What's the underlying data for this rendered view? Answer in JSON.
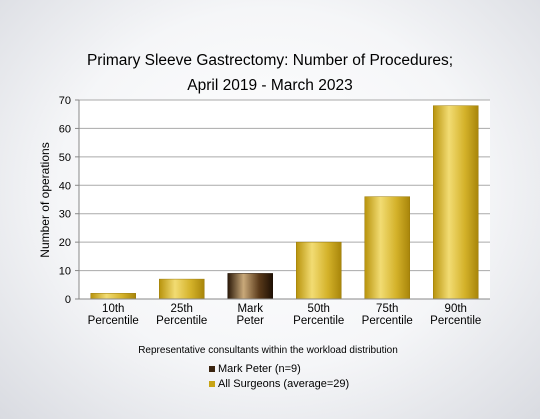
{
  "chart_data": {
    "type": "bar",
    "title": "Primary Sleeve Gastrectomy: Number of Procedures;",
    "subtitle": "April 2019 - March 2023",
    "ylabel": "Number of operations",
    "xlabel": "Representative consultants within the workload distribution",
    "ylim": [
      0,
      70
    ],
    "yticks": [
      0,
      10,
      20,
      30,
      40,
      50,
      60,
      70
    ],
    "grid": true,
    "categories": [
      [
        "10th",
        "Percentile"
      ],
      [
        "25th",
        "Percentile"
      ],
      [
        "Mark",
        "Peter"
      ],
      [
        "50th",
        "Percentile"
      ],
      [
        "75th",
        "Percentile"
      ],
      [
        "90th",
        "Percentile"
      ]
    ],
    "values": [
      2,
      7,
      9,
      20,
      36,
      68
    ],
    "highlight_index": 2,
    "colors": {
      "surgeon": "#c8a415",
      "highlight": "#3a2410",
      "surgeon_light": "#f2dc73",
      "highlight_light": "#c9a97a"
    },
    "legend": [
      {
        "label": "Mark Peter (n=9)",
        "color": "#3a2410"
      },
      {
        "label": "All Surgeons (average=29)",
        "color": "#c8a415"
      }
    ],
    "legend_position": "bottom-center"
  }
}
